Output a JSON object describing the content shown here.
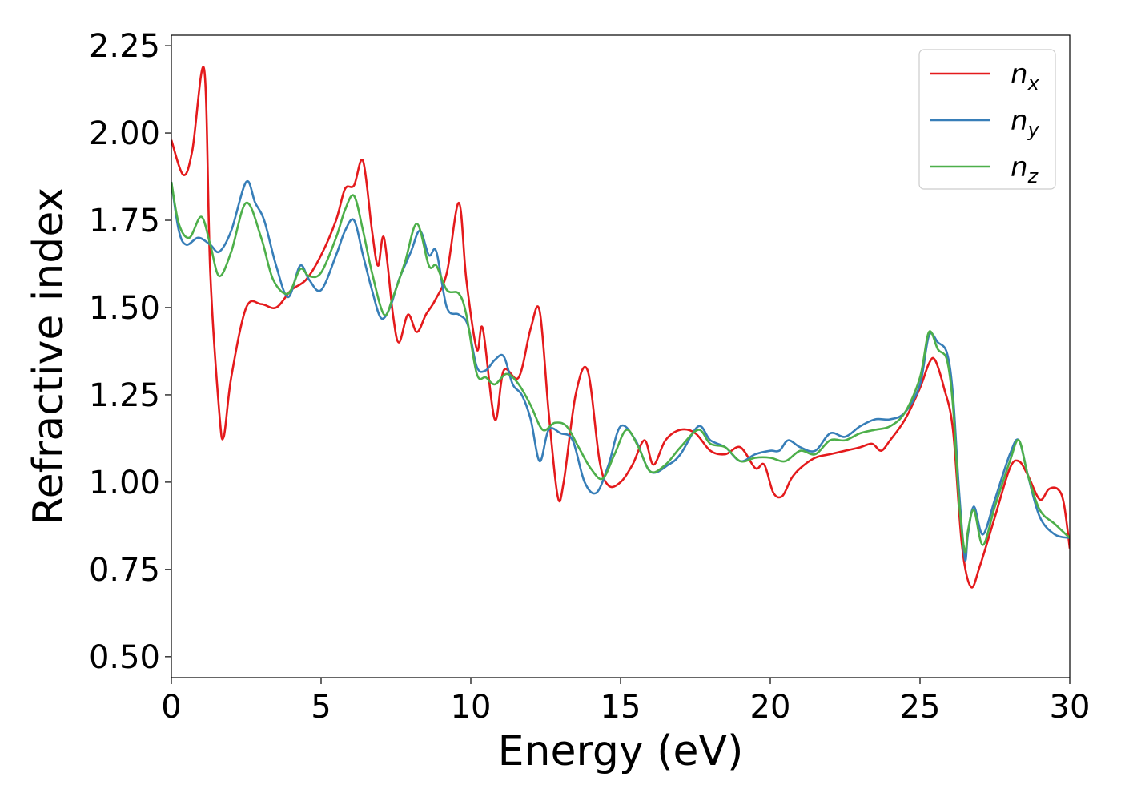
{
  "chart_data": {
    "type": "line",
    "xlabel": "Energy (eV)",
    "ylabel": "Refractive index",
    "xlim": [
      0,
      30
    ],
    "ylim": [
      0.44,
      2.28
    ],
    "xticks": [
      0,
      5,
      10,
      15,
      20,
      25,
      30
    ],
    "xtick_labels": [
      "0",
      "5",
      "10",
      "15",
      "20",
      "25",
      "30"
    ],
    "yticks": [
      0.5,
      0.75,
      1.0,
      1.25,
      1.5,
      1.75,
      2.0,
      2.25
    ],
    "ytick_labels": [
      "0.50",
      "0.75",
      "1.00",
      "1.25",
      "1.50",
      "1.75",
      "2.00",
      "2.25"
    ],
    "grid": false,
    "legend_position": "top-right",
    "series": [
      {
        "name": "n",
        "subscript": "x",
        "color": "#e41a1c",
        "x": [
          0,
          0.4,
          0.7,
          1.1,
          1.3,
          1.6,
          1.75,
          2.0,
          2.5,
          3.0,
          3.5,
          4.0,
          4.5,
          5.0,
          5.5,
          5.8,
          6.1,
          6.4,
          6.7,
          6.9,
          7.1,
          7.4,
          7.6,
          7.9,
          8.2,
          8.5,
          8.8,
          9.2,
          9.6,
          9.85,
          10.2,
          10.4,
          10.8,
          11.1,
          11.6,
          12.0,
          12.3,
          12.6,
          12.9,
          13.1,
          13.5,
          13.9,
          14.3,
          14.6,
          15.0,
          15.4,
          15.8,
          16.1,
          16.5,
          17.0,
          17.5,
          18.0,
          18.5,
          19.0,
          19.5,
          19.8,
          20.1,
          20.4,
          20.7,
          21.0,
          21.5,
          22.0,
          22.5,
          23.0,
          23.4,
          23.7,
          24.0,
          24.5,
          25.0,
          25.3,
          25.5,
          25.8,
          26.1,
          26.4,
          26.7,
          27.0,
          27.5,
          28.0,
          28.3,
          28.6,
          29.0,
          29.3,
          29.6,
          29.8,
          30.0
        ],
        "y": [
          1.98,
          1.88,
          1.95,
          2.18,
          1.6,
          1.2,
          1.13,
          1.3,
          1.5,
          1.51,
          1.5,
          1.55,
          1.58,
          1.65,
          1.75,
          1.84,
          1.85,
          1.92,
          1.72,
          1.62,
          1.7,
          1.48,
          1.4,
          1.48,
          1.43,
          1.48,
          1.52,
          1.6,
          1.8,
          1.58,
          1.38,
          1.44,
          1.18,
          1.32,
          1.3,
          1.44,
          1.49,
          1.2,
          0.96,
          1.0,
          1.25,
          1.32,
          1.06,
          0.99,
          1.0,
          1.05,
          1.12,
          1.05,
          1.12,
          1.15,
          1.14,
          1.09,
          1.08,
          1.1,
          1.04,
          1.05,
          0.97,
          0.96,
          1.01,
          1.04,
          1.07,
          1.08,
          1.09,
          1.1,
          1.11,
          1.09,
          1.12,
          1.18,
          1.27,
          1.34,
          1.35,
          1.27,
          1.15,
          0.82,
          0.7,
          0.76,
          0.9,
          1.04,
          1.06,
          1.02,
          0.95,
          0.98,
          0.98,
          0.94,
          0.81
        ]
      },
      {
        "name": "n",
        "subscript": "y",
        "color": "#377eb8",
        "x": [
          0,
          0.25,
          0.5,
          0.9,
          1.3,
          1.6,
          2.0,
          2.5,
          2.8,
          3.1,
          3.5,
          3.9,
          4.3,
          4.6,
          5.0,
          5.5,
          5.8,
          6.1,
          6.4,
          6.7,
          7.0,
          7.3,
          7.6,
          8.0,
          8.3,
          8.6,
          8.85,
          9.2,
          9.6,
          9.9,
          10.2,
          10.5,
          10.8,
          11.1,
          11.4,
          11.7,
          12.0,
          12.3,
          12.6,
          13.0,
          13.4,
          13.8,
          14.2,
          14.6,
          15.0,
          15.5,
          16.0,
          16.6,
          17.0,
          17.6,
          18.0,
          18.5,
          19.0,
          19.5,
          20.0,
          20.3,
          20.6,
          21.0,
          21.5,
          22.0,
          22.5,
          23.0,
          23.5,
          24.0,
          24.5,
          25.0,
          25.3,
          25.6,
          25.9,
          26.1,
          26.3,
          26.5,
          26.6,
          26.8,
          27.1,
          27.5,
          28.0,
          28.3,
          28.6,
          29.0,
          29.5,
          30.0
        ],
        "y": [
          1.86,
          1.72,
          1.68,
          1.7,
          1.68,
          1.66,
          1.72,
          1.86,
          1.8,
          1.75,
          1.62,
          1.53,
          1.62,
          1.58,
          1.55,
          1.65,
          1.72,
          1.75,
          1.65,
          1.55,
          1.47,
          1.5,
          1.58,
          1.66,
          1.72,
          1.65,
          1.66,
          1.5,
          1.48,
          1.45,
          1.33,
          1.32,
          1.35,
          1.36,
          1.28,
          1.25,
          1.18,
          1.06,
          1.15,
          1.14,
          1.12,
          1.0,
          0.97,
          1.05,
          1.16,
          1.12,
          1.03,
          1.05,
          1.08,
          1.16,
          1.12,
          1.1,
          1.06,
          1.08,
          1.09,
          1.09,
          1.12,
          1.1,
          1.09,
          1.14,
          1.13,
          1.16,
          1.18,
          1.18,
          1.2,
          1.28,
          1.42,
          1.4,
          1.37,
          1.25,
          0.98,
          0.78,
          0.85,
          0.93,
          0.85,
          0.95,
          1.08,
          1.12,
          1.02,
          0.9,
          0.85,
          0.84
        ]
      },
      {
        "name": "n",
        "subscript": "z",
        "color": "#4daf4a",
        "x": [
          0,
          0.25,
          0.6,
          1.0,
          1.3,
          1.6,
          2.0,
          2.5,
          3.0,
          3.4,
          3.9,
          4.3,
          4.6,
          5.0,
          5.5,
          5.8,
          6.1,
          6.4,
          6.7,
          7.1,
          7.4,
          7.8,
          8.2,
          8.6,
          8.85,
          9.2,
          9.6,
          9.85,
          10.2,
          10.5,
          10.8,
          11.2,
          11.6,
          12.0,
          12.4,
          12.8,
          13.2,
          13.6,
          14.0,
          14.4,
          14.8,
          15.2,
          15.6,
          16.0,
          16.5,
          17.0,
          17.6,
          18.0,
          18.5,
          19.0,
          19.5,
          20.0,
          20.5,
          21.0,
          21.5,
          22.0,
          22.5,
          23.0,
          23.5,
          24.0,
          24.5,
          25.0,
          25.3,
          25.6,
          25.9,
          26.1,
          26.3,
          26.5,
          26.6,
          26.8,
          27.1,
          27.5,
          28.0,
          28.3,
          28.6,
          29.0,
          29.5,
          30.0
        ],
        "y": [
          1.86,
          1.74,
          1.7,
          1.76,
          1.68,
          1.59,
          1.66,
          1.8,
          1.7,
          1.58,
          1.54,
          1.61,
          1.59,
          1.6,
          1.7,
          1.78,
          1.82,
          1.72,
          1.6,
          1.48,
          1.53,
          1.63,
          1.74,
          1.62,
          1.62,
          1.55,
          1.54,
          1.48,
          1.31,
          1.3,
          1.28,
          1.31,
          1.28,
          1.22,
          1.15,
          1.17,
          1.16,
          1.1,
          1.04,
          1.01,
          1.08,
          1.15,
          1.1,
          1.03,
          1.05,
          1.1,
          1.15,
          1.11,
          1.1,
          1.06,
          1.07,
          1.07,
          1.06,
          1.09,
          1.08,
          1.12,
          1.12,
          1.14,
          1.15,
          1.16,
          1.2,
          1.3,
          1.43,
          1.38,
          1.35,
          1.22,
          0.95,
          0.8,
          0.86,
          0.92,
          0.82,
          0.93,
          1.06,
          1.12,
          1.02,
          0.92,
          0.88,
          0.84
        ]
      }
    ]
  }
}
